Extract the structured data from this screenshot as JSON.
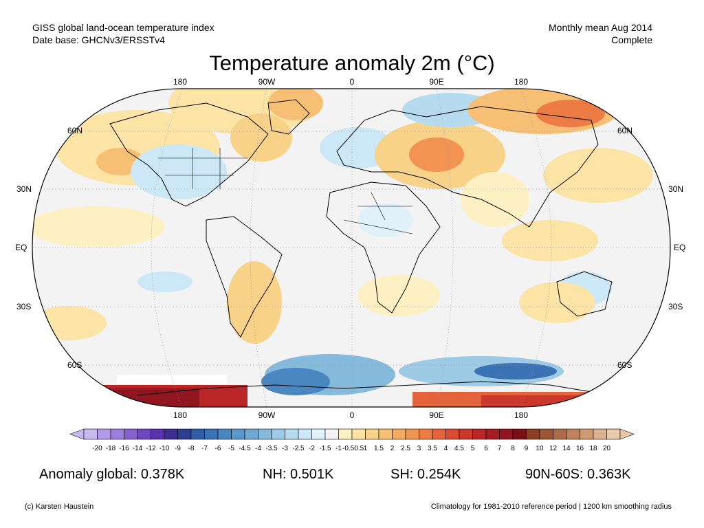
{
  "header": {
    "left_line1": "GISS global land-ocean temperature index",
    "left_line2": "Date base: GHCNv3/ERSSTv4",
    "right_line1": "Monthly mean Aug 2014",
    "right_line2": "Complete"
  },
  "title": "Temperature anomaly 2m (°C)",
  "map": {
    "projection": "Robinson",
    "lon_labels_top": [
      "180",
      "90W",
      "0",
      "90E",
      "180"
    ],
    "lon_labels_bottom": [
      "180",
      "90W",
      "0",
      "90E",
      "180"
    ],
    "lat_labels_left": [
      "60N",
      "30N",
      "EQ",
      "30S",
      "60S"
    ],
    "lat_labels_right": [
      "60N",
      "30N",
      "EQ",
      "30S",
      "60S"
    ]
  },
  "colorbar": {
    "ticks": [
      "-20",
      "-18",
      "-16",
      "-14",
      "-12",
      "-10",
      "-9",
      "-8",
      "-7",
      "-6",
      "-5",
      "-4.5",
      "-4",
      "-3.5",
      "-3",
      "-2.5",
      "-2",
      "-1.5",
      "-1",
      "-0.50.5",
      "1",
      "1.5",
      "2",
      "2.5",
      "3",
      "3.5",
      "4",
      "4.5",
      "5",
      "6",
      "7",
      "8",
      "9",
      "10",
      "12",
      "14",
      "16",
      "18",
      "20"
    ],
    "colors": [
      "#c9b8ef",
      "#b39ae8",
      "#9c7edd",
      "#8561cf",
      "#6e46c0",
      "#5a32ad",
      "#3c2f91",
      "#2c3f8f",
      "#2f5da6",
      "#3a72b4",
      "#4a86bf",
      "#5b98c9",
      "#6fa9d3",
      "#86badc",
      "#9dcae4",
      "#b6dbee",
      "#cce7f5",
      "#e0f1fa",
      "#f3f3f3",
      "#fdf1c4",
      "#fbe4a6",
      "#f9d28a",
      "#f7bf74",
      "#f4aa61",
      "#f19451",
      "#ec7c43",
      "#e4633a",
      "#d94b33",
      "#cb372d",
      "#b82628",
      "#a31b23",
      "#8f1620",
      "#7a1015",
      "#8c4023",
      "#9c5634",
      "#ad6b48",
      "#be835e",
      "#cd9a75",
      "#dbb291",
      "#e8c9ac"
    ]
  },
  "stats": {
    "global": "Anomaly global: 0.378K",
    "nh": "NH: 0.501K",
    "sh": "SH: 0.254K",
    "polar": "90N-60S: 0.363K"
  },
  "footer": {
    "left": "(c) Karsten Haustein",
    "right": "Climatology for 1981-2010 reference period | 1200 km smoothing radius"
  }
}
